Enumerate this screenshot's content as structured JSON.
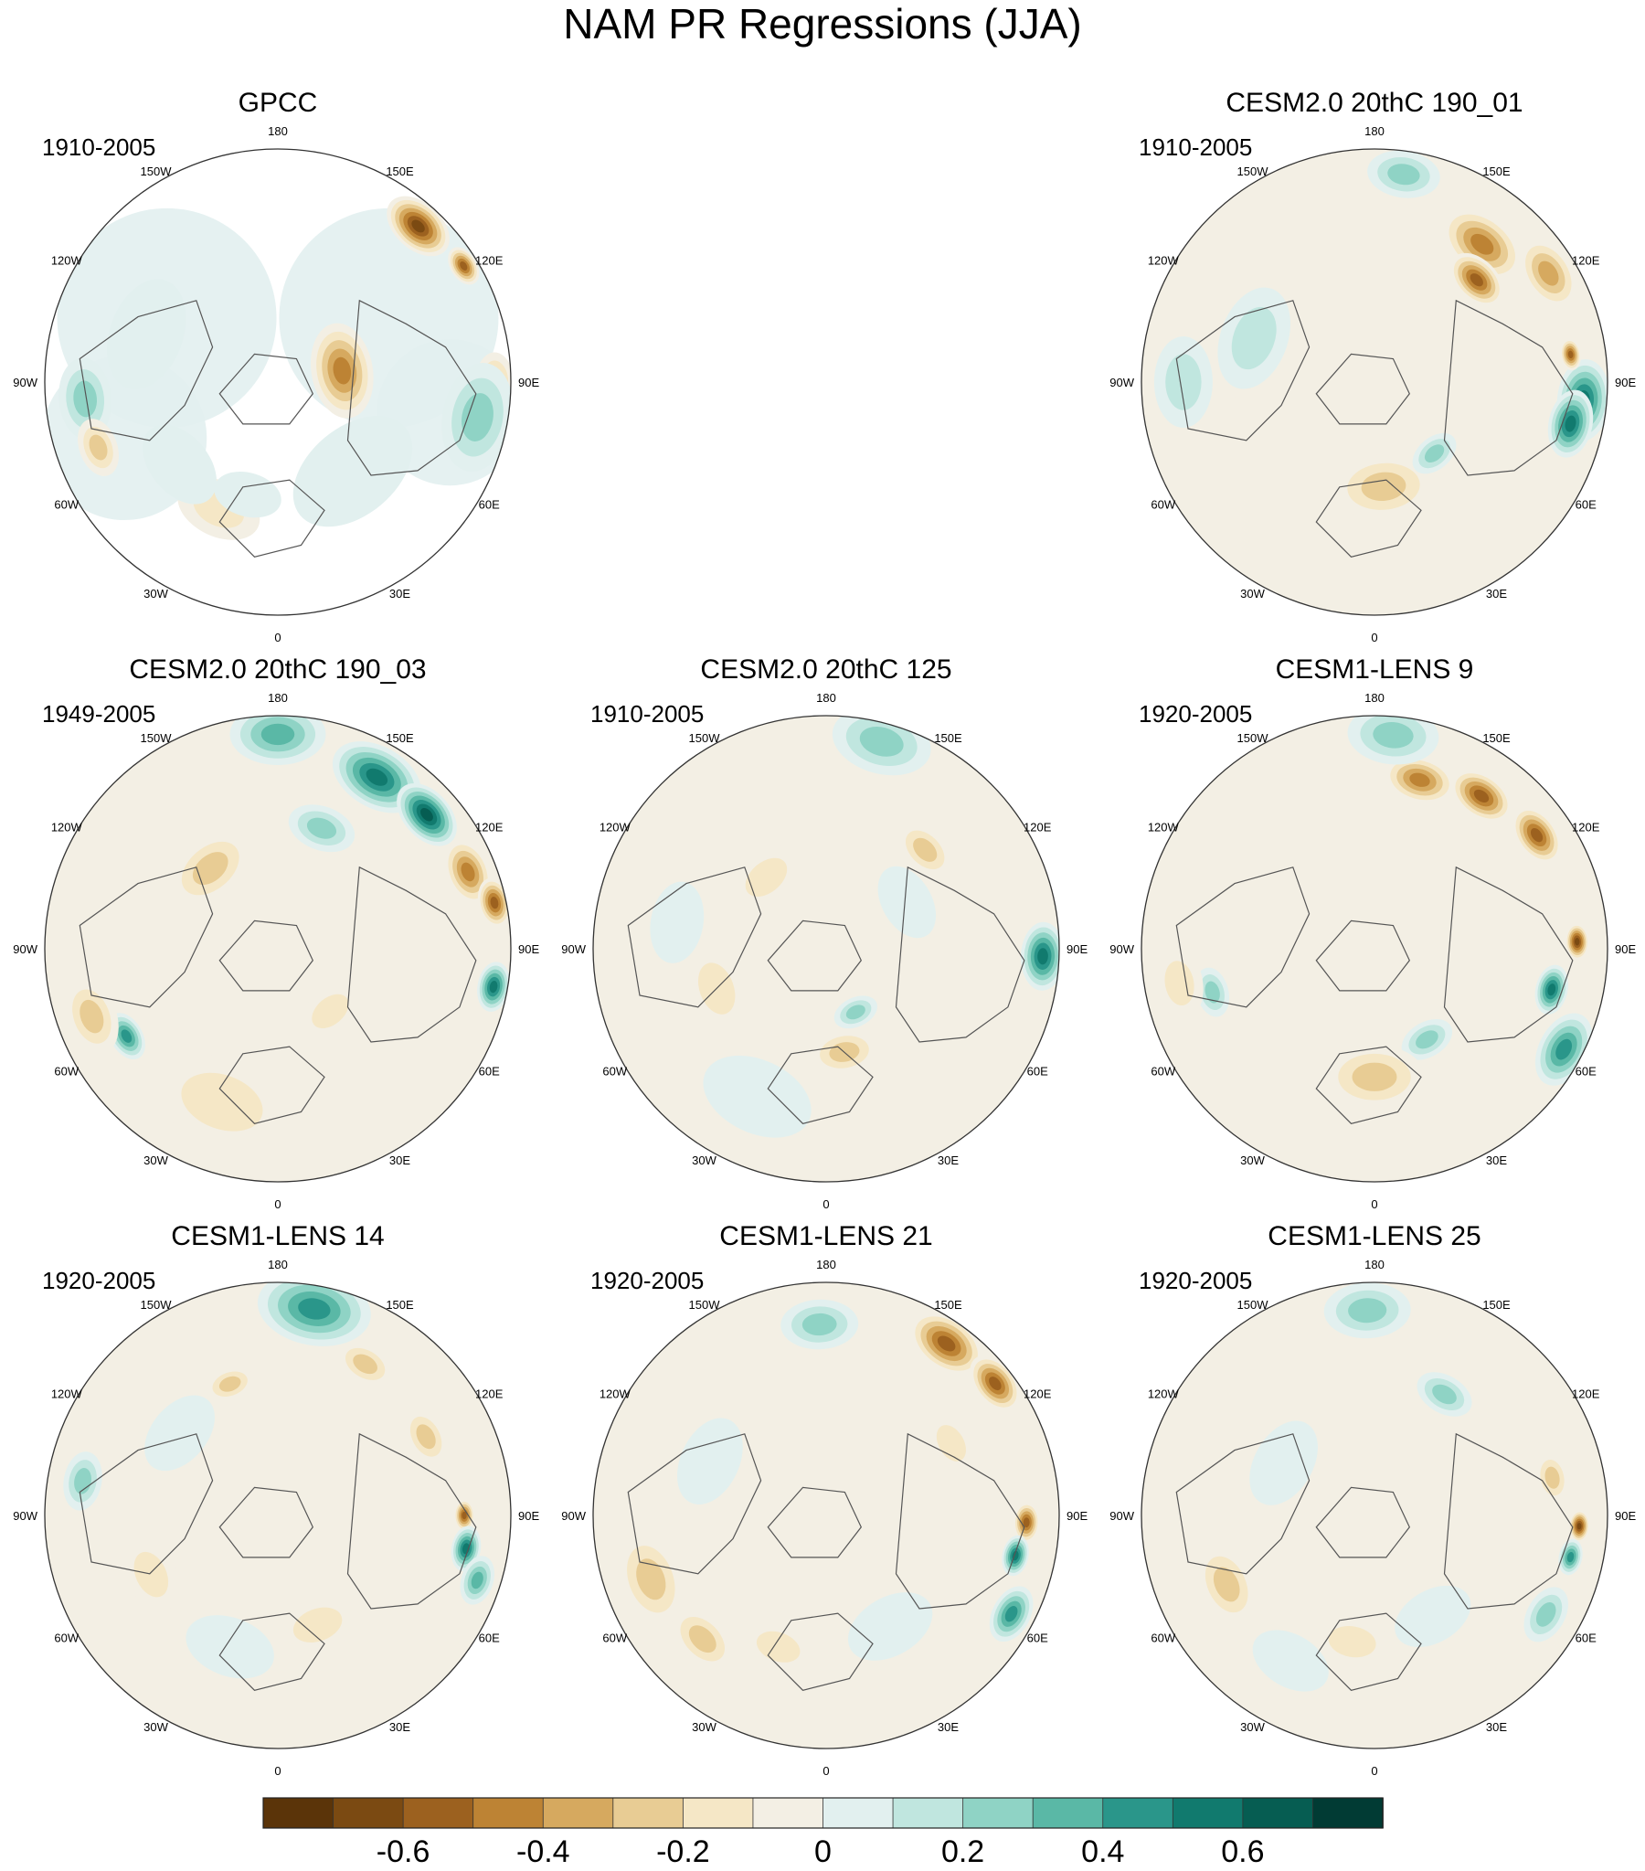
{
  "chart_data": {
    "type": "heatmap",
    "title": "NAM PR Regressions (JJA)",
    "projection": "north polar stereographic",
    "lon_labels": [
      "180",
      "150E",
      "120E",
      "90E",
      "60E",
      "30E",
      "0",
      "30W",
      "60W",
      "90W",
      "120W",
      "150W"
    ],
    "colorbar": {
      "levels": [
        -0.7,
        -0.6,
        -0.5,
        -0.4,
        -0.3,
        -0.2,
        -0.1,
        0,
        0.1,
        0.2,
        0.3,
        0.4,
        0.5,
        0.6,
        0.7
      ],
      "tick_labels": [
        "-0.6",
        "-0.4",
        "-0.2",
        "0",
        "0.2",
        "0.4",
        "0.6"
      ],
      "colors": [
        "#5b3409",
        "#7b4a12",
        "#9c611f",
        "#bd8334",
        "#d6a95f",
        "#e8cc94",
        "#f5e7c6",
        "#f3efe4",
        "#e2f0ef",
        "#c0e6df",
        "#8fd3c5",
        "#5ab8a6",
        "#2a968a",
        "#117a6e",
        "#065d52",
        "#013b34"
      ]
    },
    "panels": [
      {
        "title": "GPCC",
        "period": "1910-2005",
        "land_only": true
      },
      {
        "title": "CESM2.0 20thC 190_01",
        "period": "1910-2005"
      },
      {
        "title": "CESM2.0 20thC 190_03",
        "period": "1949-2005"
      },
      {
        "title": "CESM2.0 20thC 125",
        "period": "1910-2005"
      },
      {
        "title": "CESM1-LENS 9",
        "period": "1920-2005"
      },
      {
        "title": "CESM1-LENS 14",
        "period": "1920-2005"
      },
      {
        "title": "CESM1-LENS 21",
        "period": "1920-2005"
      },
      {
        "title": "CESM1-LENS 25",
        "period": "1920-2005"
      }
    ]
  }
}
